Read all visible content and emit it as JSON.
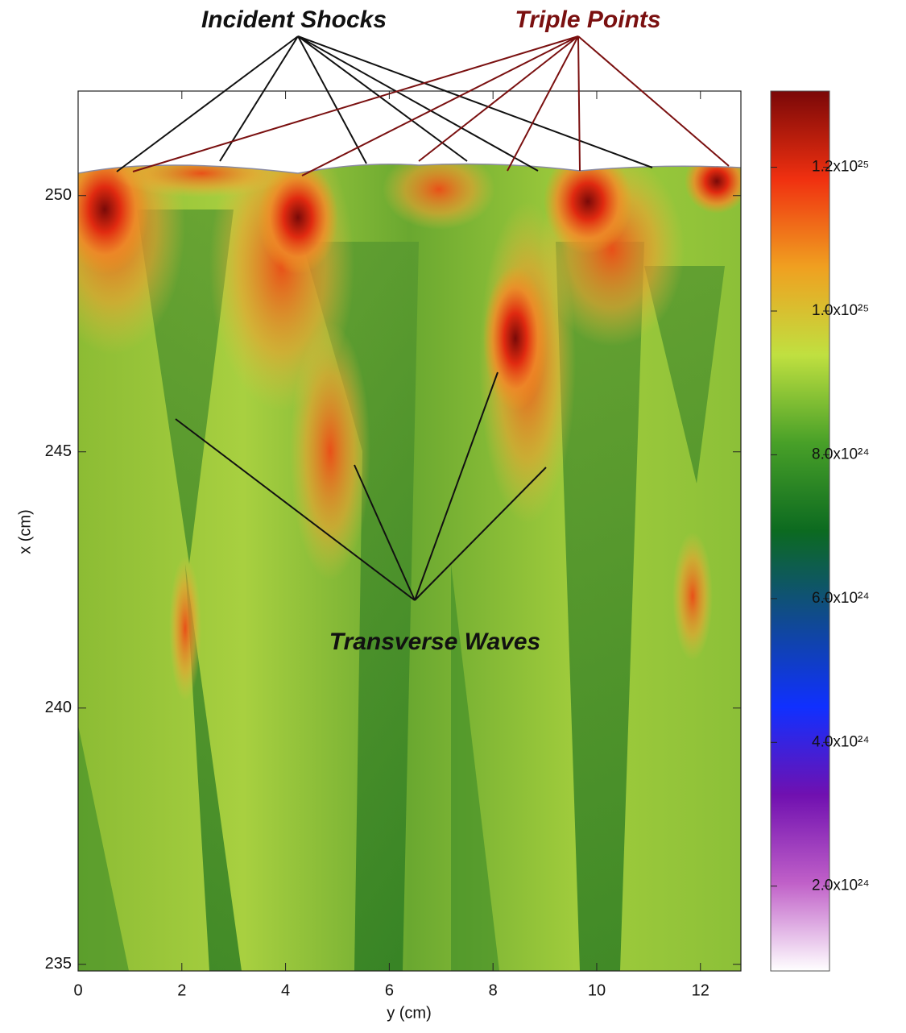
{
  "chart_data": {
    "type": "heatmap",
    "xlabel": "y (cm)",
    "ylabel": "x (cm)",
    "xlim": [
      0,
      12.78
    ],
    "xticks": [
      0,
      2,
      4,
      6,
      8,
      10,
      12
    ],
    "ylim": [
      234.87,
      252.04
    ],
    "yticks": [
      235,
      240,
      245,
      250
    ],
    "colorbar": {
      "lim": [
        8.2e+23,
        1.306e+25
      ],
      "ticks": [
        {
          "value": 2e+24,
          "label": "2.0x10²⁴"
        },
        {
          "value": 4e+24,
          "label": "4.0x10²⁴"
        },
        {
          "value": 6e+24,
          "label": "6.0x10²⁴"
        },
        {
          "value": 8e+24,
          "label": "8.0x10²⁴"
        },
        {
          "value": 1e+25,
          "label": "1.0x10²⁵"
        },
        {
          "value": 1.2e+25,
          "label": "1.2x10²⁵"
        }
      ],
      "colors": [
        "#ffffff",
        "#c060c8",
        "#7010b0",
        "#1030ff",
        "#104a90",
        "#0c6a20",
        "#48a028",
        "#c0e040",
        "#f0a020",
        "#f03010",
        "#7a0808"
      ]
    },
    "annotations": [
      "Incident Shocks",
      "Triple Points",
      "Transverse Waves"
    ]
  }
}
